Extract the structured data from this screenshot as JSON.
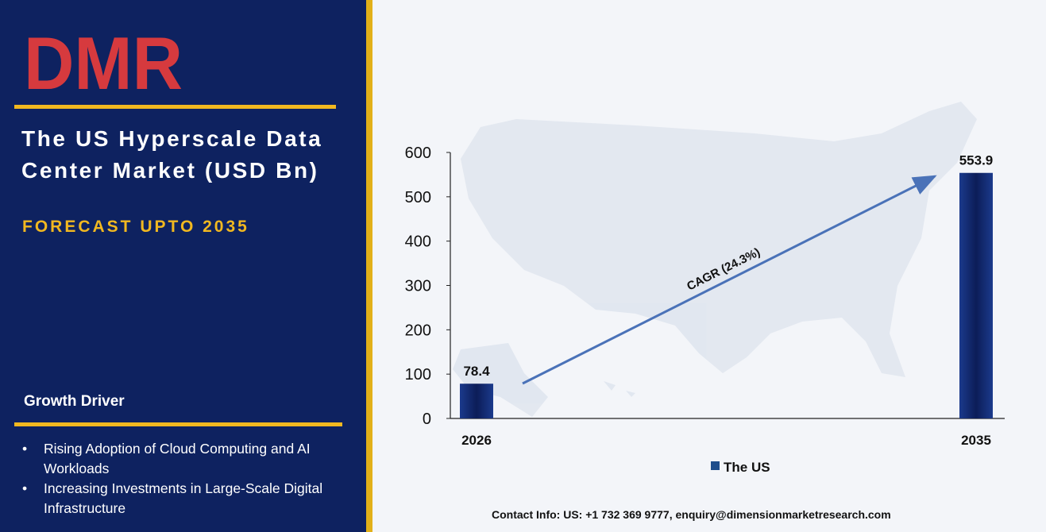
{
  "brand": {
    "logo_text": "DMR"
  },
  "report": {
    "title": "The US Hyperscale Data Center Market (USD Bn)",
    "subtitle": "FORECAST UPTO 2035"
  },
  "growth": {
    "label": "Growth Driver",
    "items": [
      "Rising Adoption of Cloud Computing and AI Workloads",
      "Increasing Investments in Large-Scale Digital Infrastructure"
    ]
  },
  "contact": "Contact Info: US: +1 732 369 9777, enquiry@dimensionmarketresearch.com",
  "colors": {
    "panel": "#0e2260",
    "accent": "#f1b820",
    "bar": "#0f2466",
    "arrow": "#4a72b8"
  },
  "chart_data": {
    "type": "bar",
    "categories": [
      "2026",
      "2035"
    ],
    "series": [
      {
        "name": "The US",
        "values": [
          78.4,
          553.9
        ]
      }
    ],
    "data_labels": [
      "78.4",
      "553.9"
    ],
    "ylim": [
      0,
      600
    ],
    "yticks": [
      0,
      100,
      200,
      300,
      400,
      500,
      600
    ],
    "annotation": "CAGR (24.3%)",
    "legend": "bottom-center",
    "grid": false
  }
}
